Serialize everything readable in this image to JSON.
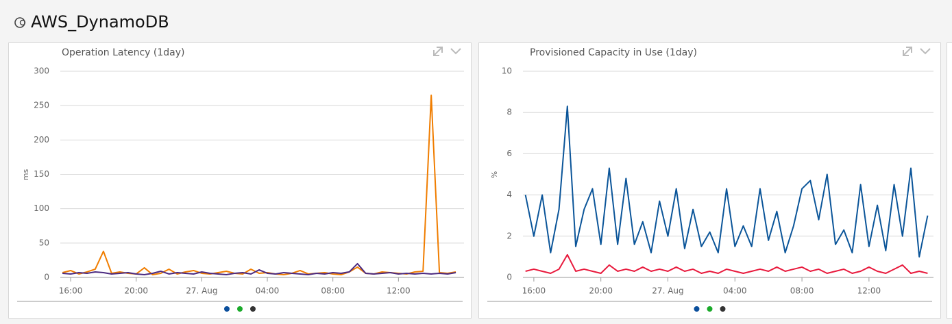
{
  "header": {
    "title": "AWS_DynamoDB"
  },
  "chart_data": [
    {
      "type": "line",
      "title": "Operation Latency (1day)",
      "ylabel": "ms",
      "x": [
        -8.5,
        -8,
        -7.5,
        -7,
        -6.5,
        -6,
        -5.5,
        -5,
        -4.5,
        -4,
        -3.5,
        -3,
        -2.5,
        -2,
        -1.5,
        -1,
        -0.5,
        0,
        0.5,
        1,
        1.5,
        2,
        2.5,
        3,
        3.5,
        4,
        4.5,
        5,
        5.5,
        6,
        6.5,
        7,
        7.5,
        8,
        8.5,
        9,
        9.5,
        10,
        10.5,
        11,
        11.5,
        12,
        12.5,
        13,
        13.5,
        14,
        14.5,
        15,
        15.5
      ],
      "xlim": [
        -8.63,
        16.0
      ],
      "xticks": [
        {
          "value": -8,
          "label": "16:00"
        },
        {
          "value": -4,
          "label": "20:00"
        },
        {
          "value": 0,
          "label": "27. Aug"
        },
        {
          "value": 4,
          "label": "04:00"
        },
        {
          "value": 8,
          "label": "08:00"
        },
        {
          "value": 12,
          "label": "12:00"
        }
      ],
      "ylim": [
        0,
        300
      ],
      "yticks": [
        0,
        50,
        100,
        150,
        200,
        250,
        300
      ],
      "grid": true,
      "legend_colors": [
        "#0b4f9c",
        "#1aaa2a",
        "#333333"
      ],
      "series": [
        {
          "color": "#f07d00",
          "values": [
            7,
            10,
            5,
            8,
            12,
            38,
            6,
            8,
            6,
            5,
            14,
            4,
            6,
            12,
            5,
            8,
            10,
            6,
            5,
            7,
            9,
            6,
            5,
            12,
            6,
            7,
            5,
            4,
            6,
            10,
            5,
            6,
            7,
            5,
            4,
            8,
            15,
            6,
            5,
            8,
            7,
            6,
            5,
            8,
            9,
            265,
            7,
            6,
            8
          ]
        },
        {
          "color": "#4b2a80",
          "values": [
            6,
            5,
            7,
            6,
            8,
            7,
            5,
            6,
            7,
            5,
            4,
            6,
            9,
            5,
            7,
            6,
            5,
            8,
            6,
            5,
            4,
            6,
            7,
            5,
            11,
            6,
            5,
            7,
            6,
            5,
            4,
            6,
            5,
            7,
            6,
            8,
            20,
            6,
            5,
            6,
            7,
            5,
            6,
            5,
            6,
            5,
            6,
            5,
            7
          ]
        }
      ]
    },
    {
      "type": "line",
      "title": "Provisioned Capacity in Use (1day)",
      "ylabel": "%",
      "x": [
        -8.5,
        -8,
        -7.5,
        -7,
        -6.5,
        -6,
        -5.5,
        -5,
        -4.5,
        -4,
        -3.5,
        -3,
        -2.5,
        -2,
        -1.5,
        -1,
        -0.5,
        0,
        0.5,
        1,
        1.5,
        2,
        2.5,
        3,
        3.5,
        4,
        4.5,
        5,
        5.5,
        6,
        6.5,
        7,
        7.5,
        8,
        8.5,
        9,
        9.5,
        10,
        10.5,
        11,
        11.5,
        12,
        12.5,
        13,
        13.5,
        14,
        14.5,
        15,
        15.5
      ],
      "xlim": [
        -8.65,
        15.85
      ],
      "xticks": [
        {
          "value": -8,
          "label": "16:00"
        },
        {
          "value": -4,
          "label": "20:00"
        },
        {
          "value": 0,
          "label": "27. Aug"
        },
        {
          "value": 4,
          "label": "04:00"
        },
        {
          "value": 8,
          "label": "08:00"
        },
        {
          "value": 12,
          "label": "12:00"
        }
      ],
      "ylim": [
        0,
        10
      ],
      "yticks": [
        0,
        2,
        4,
        6,
        8,
        10
      ],
      "grid": true,
      "legend_colors": [
        "#0b4f9c",
        "#1aaa2a",
        "#333333"
      ],
      "series": [
        {
          "color": "#0b5599",
          "values": [
            4,
            2,
            4,
            1.2,
            3.3,
            8.3,
            1.5,
            3.3,
            4.3,
            1.6,
            5.3,
            1.6,
            4.8,
            1.6,
            2.7,
            1.2,
            3.7,
            2.0,
            4.3,
            1.4,
            3.3,
            1.5,
            2.2,
            1.2,
            4.3,
            1.5,
            2.5,
            1.5,
            4.3,
            1.8,
            3.2,
            1.2,
            2.5,
            4.3,
            4.7,
            2.8,
            5.0,
            1.6,
            2.3,
            1.2,
            4.5,
            1.5,
            3.5,
            1.3,
            4.5,
            2.0,
            5.3,
            1.0,
            3.0
          ]
        },
        {
          "color": "#e8193c",
          "values": [
            0.3,
            0.4,
            0.3,
            0.2,
            0.4,
            1.1,
            0.3,
            0.4,
            0.3,
            0.2,
            0.6,
            0.3,
            0.4,
            0.3,
            0.5,
            0.3,
            0.4,
            0.3,
            0.5,
            0.3,
            0.4,
            0.2,
            0.3,
            0.2,
            0.4,
            0.3,
            0.2,
            0.3,
            0.4,
            0.3,
            0.5,
            0.3,
            0.4,
            0.5,
            0.3,
            0.4,
            0.2,
            0.3,
            0.4,
            0.2,
            0.3,
            0.5,
            0.3,
            0.2,
            0.4,
            0.6,
            0.2,
            0.3,
            0.2
          ]
        }
      ]
    }
  ]
}
